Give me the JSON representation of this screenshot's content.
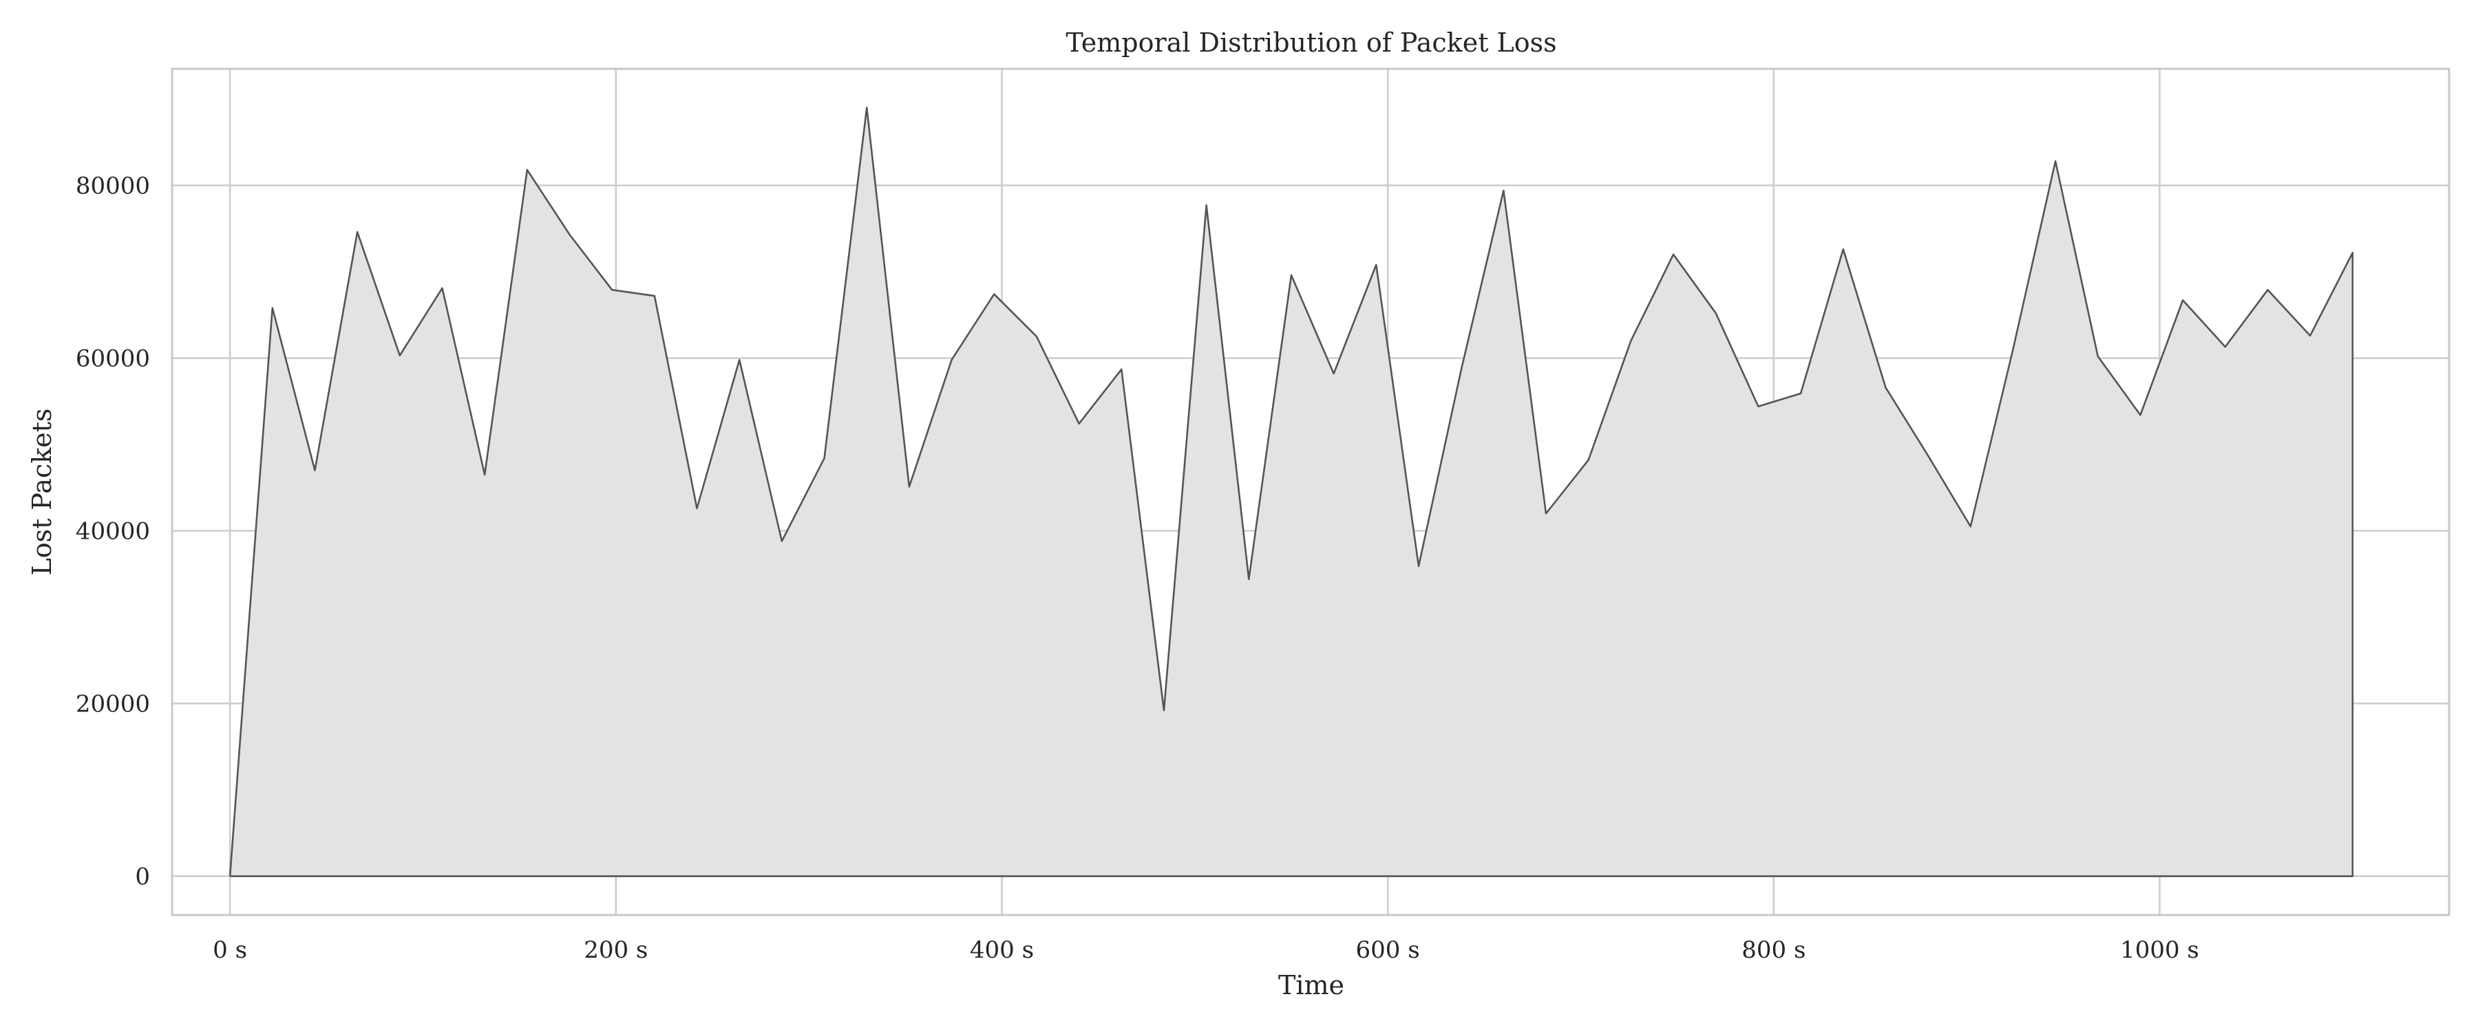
{
  "chart_data": {
    "type": "area",
    "title": "Temporal Distribution of Packet Loss",
    "xlabel": "Time",
    "ylabel": "Lost Packets",
    "xlim": [
      -30,
      1150
    ],
    "ylim": [
      -4500,
      93500
    ],
    "x_ticks": [
      0,
      200,
      400,
      600,
      800,
      1000
    ],
    "x_tick_labels": [
      "0 s",
      "200 s",
      "400 s",
      "600 s",
      "800 s",
      "1000 s"
    ],
    "y_ticks": [
      0,
      20000,
      40000,
      60000,
      80000
    ],
    "y_tick_labels": [
      "0",
      "20000",
      "40000",
      "60000",
      "80000"
    ],
    "grid": true,
    "legend": "none",
    "colors": {
      "fill": "#e3e3e3",
      "line": "#555555",
      "grid": "#cccccc",
      "frame": "#c8c8c8"
    },
    "series": [
      {
        "x": [
          0,
          22,
          44,
          66,
          88,
          110,
          132,
          154,
          176,
          198,
          220,
          242,
          264,
          286,
          308,
          330,
          352,
          374,
          396,
          418,
          440,
          462,
          484,
          506,
          528,
          550,
          572,
          594,
          616,
          638,
          660,
          682,
          704,
          726,
          748,
          770,
          792,
          814,
          836,
          858,
          880,
          902,
          924,
          946,
          968,
          990,
          1012,
          1034,
          1056,
          1078,
          1100
        ],
        "values": [
          0,
          65800,
          47000,
          74600,
          60300,
          68100,
          46500,
          81800,
          74300,
          67900,
          67200,
          42600,
          59800,
          38800,
          48400,
          89000,
          45100,
          59800,
          67400,
          62500,
          52400,
          58700,
          19200,
          77700,
          34400,
          69600,
          58200,
          70800,
          35900,
          58600,
          79400,
          42000,
          48200,
          62000,
          72000,
          65200,
          54400,
          55900,
          72600,
          56600,
          48700,
          40500,
          61000,
          82800,
          60200,
          53400,
          66700,
          61300,
          67900,
          62600,
          72200
        ]
      }
    ]
  }
}
